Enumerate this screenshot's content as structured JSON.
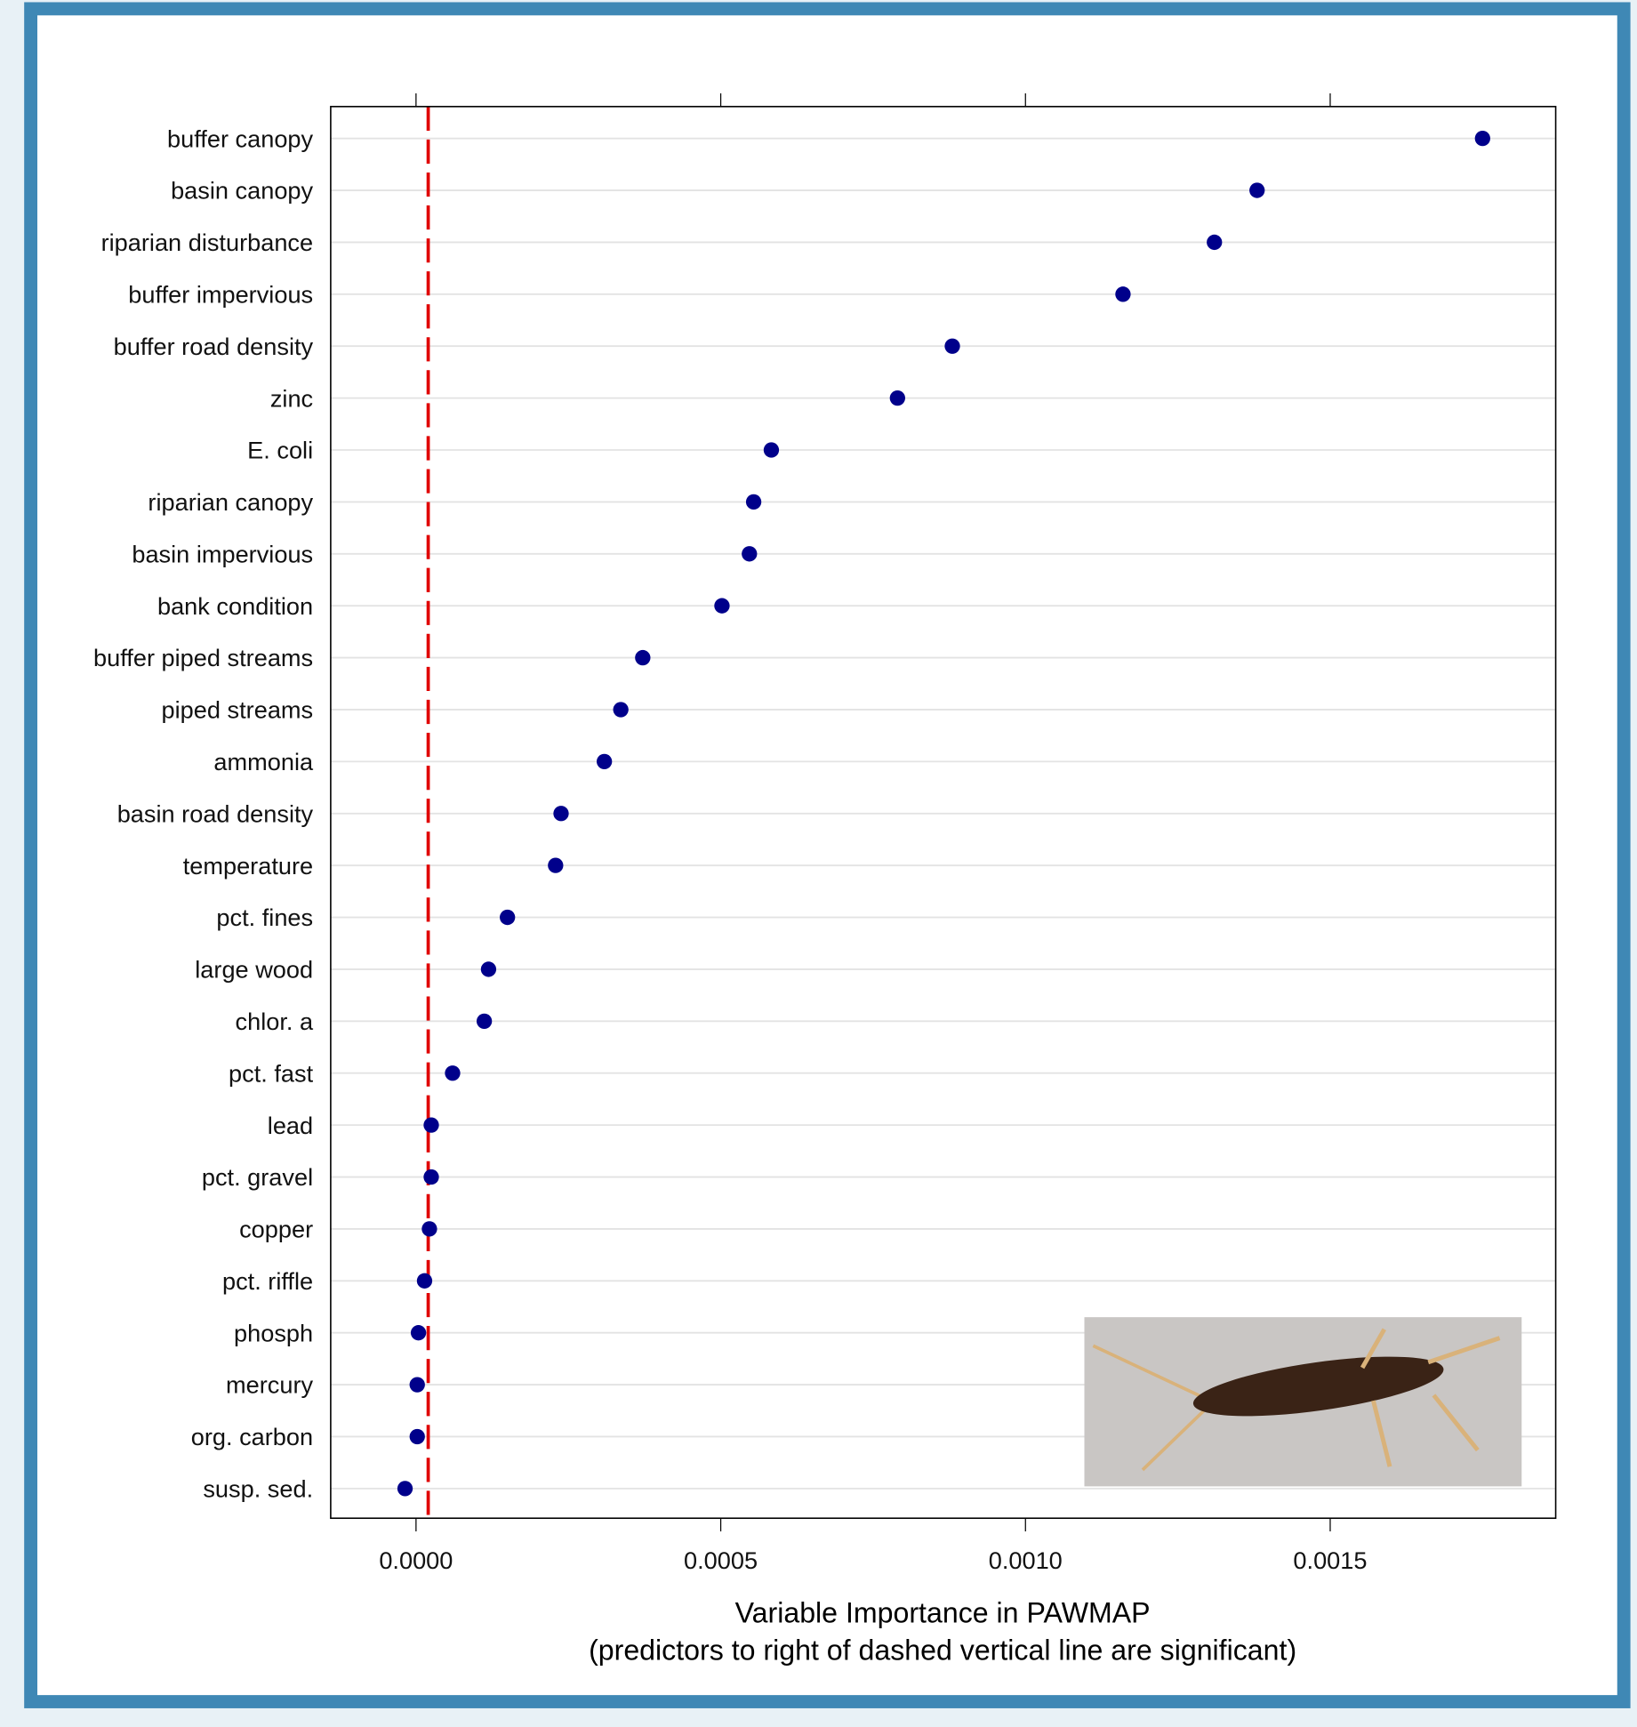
{
  "chart_data": {
    "type": "dot",
    "xlabel": [
      "Variable Importance in PAWMAP",
      "(predictors to right of dashed vertical line are significant)"
    ],
    "categories": [
      "buffer canopy",
      "basin canopy",
      "riparian disturbance",
      "buffer impervious",
      "buffer road density",
      "zinc",
      "E. coli",
      "riparian canopy",
      "basin impervious",
      "bank condition",
      "buffer piped streams",
      "piped streams",
      "ammonia",
      "basin road density",
      "temperature",
      "pct. fines",
      "large wood",
      "chlor. a",
      "pct. fast",
      "lead",
      "pct. gravel",
      "copper",
      "pct. riffle",
      "phosph",
      "mercury",
      "org. carbon",
      "susp. sed."
    ],
    "values": [
      0.00175,
      0.00138,
      0.00131,
      0.00116,
      0.00088,
      0.00079,
      0.000583,
      0.000554,
      0.000547,
      0.000502,
      0.000372,
      0.000336,
      0.000309,
      0.000238,
      0.000229,
      0.00015,
      0.000119,
      0.000112,
      6e-05,
      2.5e-05,
      2.5e-05,
      2.2e-05,
      1.4e-05,
      4e-06,
      2e-06,
      2e-06,
      -1.8e-05
    ],
    "color": "#00008b",
    "threshold": 2e-05,
    "threshold_color": "#e00000",
    "xlim": [
      -0.00014,
      0.00187
    ],
    "xticks": [
      {
        "value": 0,
        "label": "0.0000"
      },
      {
        "value": 0.0005,
        "label": "0.0005"
      },
      {
        "value": 0.001,
        "label": "0.0010"
      },
      {
        "value": 0.0015,
        "label": "0.0015"
      }
    ],
    "grid": true
  }
}
